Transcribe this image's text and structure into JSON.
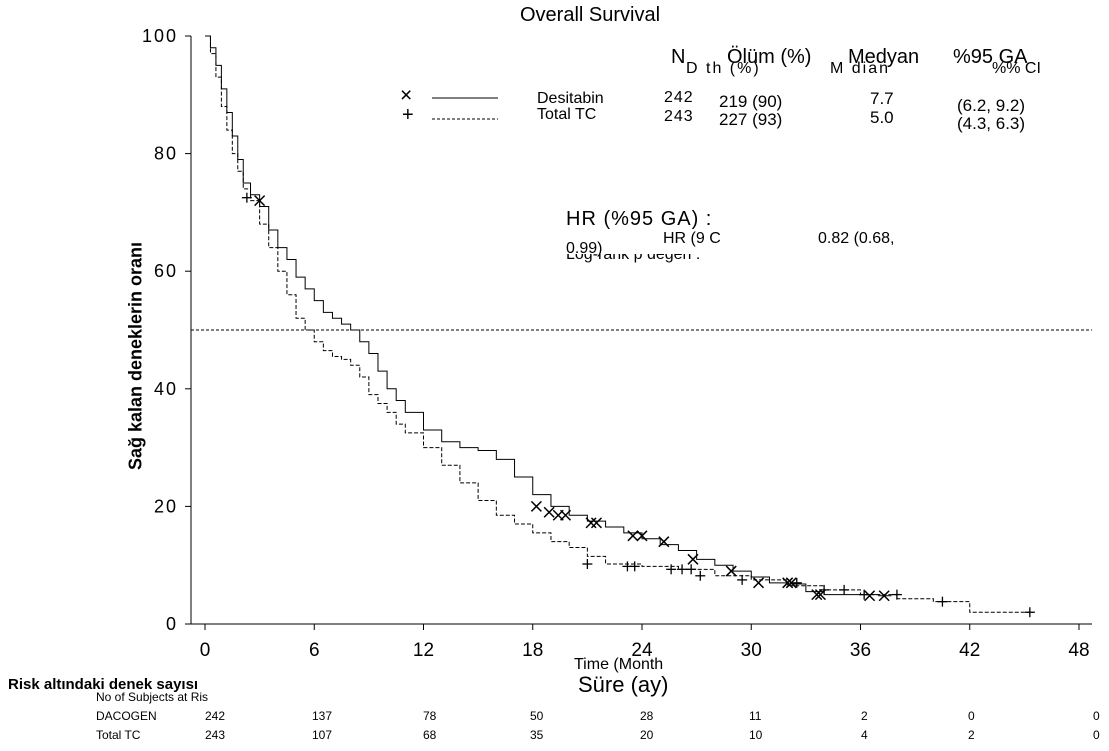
{
  "chart_data": {
    "type": "line",
    "title": "Overall Survival",
    "xlabel": "Süre (ay)",
    "xlabel_overlap": "Time (Month",
    "ylabel": "Sağ kalan deneklerin oranı",
    "xlim": [
      0,
      48
    ],
    "ylim": [
      0,
      100
    ],
    "x_ticks": [
      "0",
      "6",
      "12",
      "18",
      "24",
      "30",
      "36",
      "42",
      "48"
    ],
    "y_ticks": [
      "0",
      "20",
      "40",
      "60",
      "80",
      "100"
    ],
    "reference_line_y": 50,
    "grid": false,
    "legend": {
      "header": {
        "n": "N",
        "deaths": "Ölüm (%)",
        "median": "Medyan",
        "ci": "%95 GA",
        "deaths_overlap": "D th (%)",
        "median_overlap": "M dian",
        "ci_overlap": "%% CI"
      },
      "rows": [
        {
          "marker": "×",
          "name": "Desitabin",
          "n": "242",
          "deaths": "219 (90)",
          "median": "7.7",
          "ci": "(6.2, 9.2)"
        },
        {
          "marker": "+",
          "name": "Total TC",
          "n": "243",
          "deaths": "227 (93)",
          "median": "5.0",
          "ci": "(4.3, 6.3)"
        }
      ]
    },
    "hr_annotation": {
      "label": "HR (%95 GA) :",
      "label_overlap": "HR (9   C",
      "value": "0.82 (0.68,",
      "value_cont": "0.99)",
      "pvalue_label": "Log-rank p değeri :"
    },
    "series": [
      {
        "name": "Desitabin",
        "style": "solid",
        "censor_marker": "x",
        "x": [
          0,
          0.3,
          0.6,
          0.9,
          1.2,
          1.5,
          1.8,
          2.1,
          2.5,
          3.0,
          3.5,
          4.0,
          4.5,
          5.0,
          5.5,
          6.0,
          6.5,
          7.0,
          7.5,
          8.0,
          8.5,
          9.0,
          9.5,
          10.0,
          10.5,
          11.0,
          12.0,
          13.0,
          14.0,
          15.0,
          16.0,
          17.0,
          18.0,
          19.0,
          20.0,
          21.0,
          22.0,
          23.0,
          24.0,
          25.0,
          26.0,
          27.0,
          28.0,
          29.0,
          30.0,
          31.0,
          32.0,
          33.0,
          34.0,
          36.0,
          37.0,
          37.7
        ],
        "y": [
          100,
          98,
          95,
          91,
          87,
          83,
          79,
          75,
          73,
          71,
          67,
          64,
          62,
          59,
          57,
          55,
          53,
          52,
          51,
          50,
          48,
          46,
          43,
          40,
          38,
          36,
          33,
          31,
          30,
          29.5,
          28,
          25,
          22,
          20,
          18.5,
          17.5,
          16.5,
          15.5,
          14.5,
          13.5,
          12.5,
          11,
          10,
          9,
          8,
          7,
          6.8,
          5.5,
          5,
          5,
          4.8,
          4.8
        ],
        "censored": [
          [
            3.0,
            72
          ],
          [
            18.2,
            20
          ],
          [
            18.9,
            19
          ],
          [
            19.4,
            18.5
          ],
          [
            19.8,
            18.5
          ],
          [
            21.2,
            17.2
          ],
          [
            21.5,
            17.2
          ],
          [
            23.5,
            15
          ],
          [
            24.0,
            15
          ],
          [
            25.2,
            14
          ],
          [
            26.8,
            11
          ],
          [
            28.9,
            9
          ],
          [
            30.4,
            7
          ],
          [
            32.0,
            7
          ],
          [
            32.2,
            7
          ],
          [
            33.6,
            5
          ],
          [
            33.8,
            5
          ],
          [
            36.5,
            4.8
          ],
          [
            37.3,
            4.8
          ]
        ]
      },
      {
        "name": "Total TC",
        "style": "dashed",
        "censor_marker": "+",
        "x": [
          0,
          0.3,
          0.6,
          0.9,
          1.2,
          1.5,
          1.8,
          2.1,
          2.5,
          3.0,
          3.5,
          4.0,
          4.5,
          5.0,
          5.5,
          6.0,
          6.5,
          7.0,
          7.5,
          8.0,
          8.5,
          9.0,
          9.5,
          10.0,
          10.5,
          11.0,
          12.0,
          13.0,
          14.0,
          15.0,
          16.0,
          17.0,
          18.0,
          19.0,
          20.0,
          21.0,
          22.0,
          24.0,
          26.0,
          28.0,
          30.0,
          32.0,
          34.0,
          36.0,
          38.0,
          40.0,
          42.0,
          44.0,
          45.3
        ],
        "y": [
          100,
          97,
          93,
          88,
          84,
          80,
          77,
          74,
          72,
          68,
          64,
          60,
          56,
          52,
          50,
          48,
          46.5,
          45.5,
          45,
          44,
          42,
          39,
          37.5,
          36,
          34,
          32.5,
          30,
          27,
          24,
          21,
          18.5,
          17,
          15.5,
          14,
          13,
          11.5,
          10.2,
          9.8,
          9.3,
          8.2,
          7.5,
          6.5,
          5.8,
          5.0,
          4.3,
          3.8,
          2.0,
          2.0,
          2.0
        ],
        "censored": [
          [
            2.3,
            72.5
          ],
          [
            21.0,
            10.2
          ],
          [
            23.2,
            9.8
          ],
          [
            23.6,
            9.8
          ],
          [
            25.6,
            9.3
          ],
          [
            26.2,
            9.3
          ],
          [
            26.7,
            9.3
          ],
          [
            27.2,
            8.2
          ],
          [
            29.5,
            7.5
          ],
          [
            32.5,
            7
          ],
          [
            34.0,
            5.8
          ],
          [
            35.1,
            5.8
          ],
          [
            36.2,
            5.0
          ],
          [
            38.0,
            5.0
          ],
          [
            40.5,
            3.8
          ],
          [
            45.3,
            2.0
          ]
        ]
      }
    ]
  },
  "risk_table": {
    "title": "Risk altındaki denek sayısı",
    "subtitle_overlap": "No of Subjects at Ris",
    "rows": [
      {
        "name": "DACOGEN",
        "values": [
          "242",
          "137",
          "78",
          "50",
          "28",
          "11",
          "2",
          "0",
          "0"
        ]
      },
      {
        "name": "Total TC",
        "values": [
          "243",
          "107",
          "68",
          "35",
          "20",
          "10",
          "4",
          "2",
          "0"
        ]
      }
    ]
  }
}
